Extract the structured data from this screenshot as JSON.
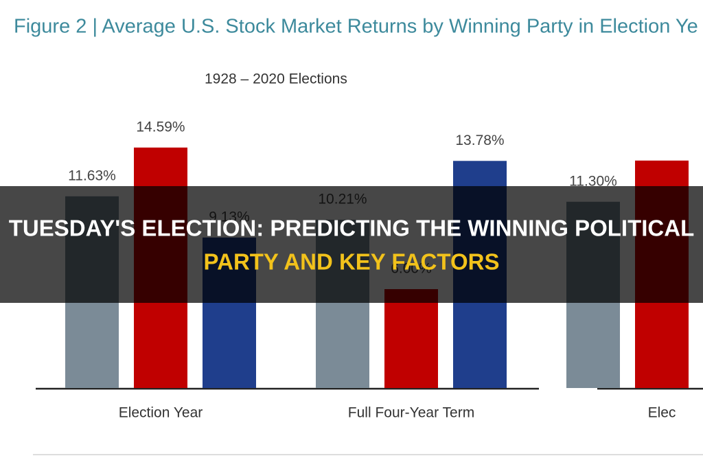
{
  "chart_data": {
    "type": "bar",
    "title": "Figure 2 | Average U.S. Stock Market Returns by Winning Party in Election Ye",
    "subtitle": "1928 – 2020 Elections",
    "categories": [
      "Election Year",
      "Full Four-Year Term",
      "Elec"
    ],
    "series": [
      {
        "color": "#7b8b97",
        "values": [
          11.63,
          10.21,
          11.3
        ],
        "value_labels": [
          "11.63%",
          "10.21%",
          "11.30%"
        ]
      },
      {
        "color": "#c00000",
        "values": [
          14.59,
          6.0,
          13.8
        ],
        "value_labels": [
          "14.59%",
          "6.00%",
          null
        ]
      },
      {
        "color": "#1f3e8c",
        "values": [
          9.13,
          13.78,
          null
        ],
        "value_labels": [
          "9.13%",
          "13.78%",
          null
        ]
      }
    ],
    "ylim": [
      0,
      16
    ]
  },
  "overlay": {
    "line1": "TUESDAY'S ELECTION: PREDICTING THE WINNING POLITICAL",
    "line2": "PARTY AND KEY FACTORS"
  }
}
